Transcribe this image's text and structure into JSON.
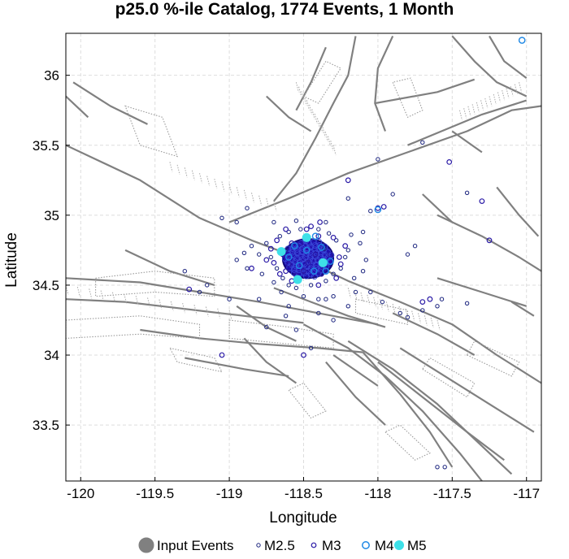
{
  "chart_data": {
    "type": "scatter",
    "title": "p25.0 %-ile Catalog, 1774 Events, 1 Month",
    "xlabel": "Longitude",
    "ylabel": "Latitude",
    "xlim": [
      -120.1,
      -116.9
    ],
    "ylim": [
      33.1,
      36.3
    ],
    "xticks": [
      -120,
      -119.5,
      -119,
      -118.5,
      -118,
      -117.5,
      -117
    ],
    "xtick_labels": [
      "-120",
      "-119.5",
      "-119",
      "-118.5",
      "-118",
      "-117.5",
      "-117"
    ],
    "yticks": [
      33.5,
      34,
      34.5,
      35,
      35.5,
      36
    ],
    "ytick_labels": [
      "33.5",
      "34",
      "34.5",
      "35",
      "35.5",
      "36"
    ],
    "grid": true,
    "legend_position": "bottom",
    "legend": [
      {
        "label": "Input Events",
        "marker": "filled-circle",
        "color": "#808080"
      },
      {
        "label": "M2.5",
        "marker": "open-circle",
        "color": "#1a237e"
      },
      {
        "label": "M3",
        "marker": "open-circle",
        "color": "#2a1aa6"
      },
      {
        "label": "M4",
        "marker": "open-circle",
        "color": "#1e88e5"
      },
      {
        "label": "M5",
        "marker": "filled-circle",
        "color": "#3ee0e8"
      }
    ],
    "colors": {
      "fault": "#808080",
      "cluster": "#2010b0",
      "m25": "#1a237e",
      "m3": "#2a1aa6",
      "m4": "#1e88e5",
      "m5": "#3ee0e8"
    },
    "cluster": {
      "lon": -118.47,
      "lat": 34.69,
      "lon_radius": 0.17,
      "lat_radius": 0.14
    },
    "series": [
      {
        "name": "M2.5",
        "points": [
          [
            -118.75,
            34.8
          ],
          [
            -118.72,
            34.7
          ],
          [
            -118.68,
            34.62
          ],
          [
            -118.8,
            34.72
          ],
          [
            -118.64,
            34.55
          ],
          [
            -118.6,
            34.5
          ],
          [
            -118.55,
            34.48
          ],
          [
            -118.45,
            34.5
          ],
          [
            -118.35,
            34.53
          ],
          [
            -118.3,
            34.58
          ],
          [
            -118.25,
            34.62
          ],
          [
            -118.22,
            34.7
          ],
          [
            -118.2,
            34.75
          ],
          [
            -118.28,
            34.82
          ],
          [
            -118.33,
            34.87
          ],
          [
            -118.4,
            34.9
          ],
          [
            -118.52,
            34.9
          ],
          [
            -118.6,
            34.88
          ],
          [
            -118.66,
            34.85
          ],
          [
            -118.85,
            34.78
          ],
          [
            -118.9,
            34.73
          ],
          [
            -118.95,
            34.68
          ],
          [
            -118.88,
            34.62
          ],
          [
            -118.78,
            34.58
          ],
          [
            -118.7,
            34.52
          ],
          [
            -118.65,
            34.45
          ],
          [
            -118.5,
            34.42
          ],
          [
            -118.4,
            34.4
          ],
          [
            -118.3,
            34.42
          ],
          [
            -118.15,
            34.45
          ],
          [
            -118.1,
            34.6
          ],
          [
            -118.08,
            34.68
          ],
          [
            -118.12,
            34.8
          ],
          [
            -118.18,
            34.86
          ],
          [
            -118.35,
            34.95
          ],
          [
            -118.55,
            34.96
          ],
          [
            -118.7,
            34.95
          ],
          [
            -118.95,
            34.95
          ],
          [
            -119.15,
            34.5
          ],
          [
            -119.2,
            34.45
          ],
          [
            -118.6,
            34.35
          ],
          [
            -118.4,
            34.3
          ],
          [
            -118.2,
            34.35
          ],
          [
            -117.97,
            34.38
          ],
          [
            -117.85,
            34.3
          ],
          [
            -117.7,
            34.32
          ],
          [
            -117.6,
            34.35
          ],
          [
            -117.57,
            34.4
          ],
          [
            -117.8,
            34.72
          ],
          [
            -117.4,
            35.16
          ],
          [
            -117.7,
            35.52
          ],
          [
            -118.0,
            35.4
          ],
          [
            -118.2,
            35.12
          ],
          [
            -118.05,
            35.03
          ],
          [
            -117.9,
            35.15
          ],
          [
            -117.75,
            34.78
          ],
          [
            -118.55,
            34.18
          ],
          [
            -118.75,
            34.2
          ],
          [
            -118.62,
            34.28
          ],
          [
            -118.3,
            34.25
          ],
          [
            -118.45,
            34.05
          ],
          [
            -118.05,
            34.45
          ],
          [
            -118.16,
            34.55
          ],
          [
            -119.05,
            34.98
          ],
          [
            -118.88,
            35.05
          ],
          [
            -119.3,
            34.6
          ],
          [
            -119.0,
            34.4
          ],
          [
            -118.8,
            34.4
          ],
          [
            -117.6,
            33.2
          ],
          [
            -117.55,
            33.2
          ],
          [
            -118.35,
            34.4
          ],
          [
            -117.4,
            34.37
          ],
          [
            -117.8,
            34.27
          ],
          [
            -118.1,
            34.88
          ],
          [
            -118.62,
            34.75
          ],
          [
            -118.36,
            34.76
          ]
        ]
      },
      {
        "name": "M3",
        "points": [
          [
            -118.68,
            34.82
          ],
          [
            -118.7,
            34.66
          ],
          [
            -118.62,
            34.6
          ],
          [
            -118.58,
            34.53
          ],
          [
            -118.4,
            34.5
          ],
          [
            -118.28,
            34.55
          ],
          [
            -118.25,
            34.65
          ],
          [
            -118.22,
            34.78
          ],
          [
            -118.3,
            34.84
          ],
          [
            -118.45,
            34.92
          ],
          [
            -118.62,
            34.9
          ],
          [
            -118.85,
            34.62
          ],
          [
            -118.75,
            34.68
          ],
          [
            -119.27,
            34.47
          ],
          [
            -119.05,
            34.0
          ],
          [
            -118.5,
            34.0
          ],
          [
            -118.48,
            34.9
          ],
          [
            -118.39,
            34.95
          ],
          [
            -118.2,
            35.25
          ],
          [
            -118.0,
            35.05
          ],
          [
            -117.96,
            35.06
          ],
          [
            -117.52,
            35.38
          ],
          [
            -117.25,
            34.82
          ],
          [
            -117.7,
            34.38
          ],
          [
            -117.65,
            34.4
          ],
          [
            -117.3,
            35.1
          ],
          [
            -118.6,
            34.65
          ],
          [
            -118.52,
            34.8
          ],
          [
            -118.36,
            34.62
          ],
          [
            -118.42,
            34.72
          ],
          [
            -118.55,
            34.57
          ],
          [
            -118.32,
            34.72
          ],
          [
            -118.4,
            34.85
          ],
          [
            -118.5,
            34.6
          ],
          [
            -118.64,
            34.72
          ],
          [
            -118.58,
            34.8
          ],
          [
            -118.26,
            34.7
          ],
          [
            -118.47,
            34.66
          ],
          [
            -118.38,
            34.58
          ],
          [
            -118.72,
            34.76
          ],
          [
            -118.66,
            34.58
          ]
        ]
      },
      {
        "name": "M4",
        "points": [
          [
            -118.53,
            34.64
          ],
          [
            -118.38,
            34.77
          ],
          [
            -118.43,
            34.6
          ],
          [
            -118.32,
            34.67
          ],
          [
            -118.6,
            34.7
          ],
          [
            -118.48,
            34.75
          ],
          [
            -118.35,
            34.6
          ],
          [
            -118.56,
            34.78
          ],
          [
            -118.42,
            34.85
          ],
          [
            -117.03,
            36.25
          ],
          [
            -118.0,
            35.04
          ]
        ]
      },
      {
        "name": "M5",
        "points": [
          [
            -118.48,
            34.84
          ],
          [
            -118.54,
            34.54
          ],
          [
            -118.65,
            34.74
          ],
          [
            -118.37,
            34.66
          ]
        ]
      }
    ]
  }
}
